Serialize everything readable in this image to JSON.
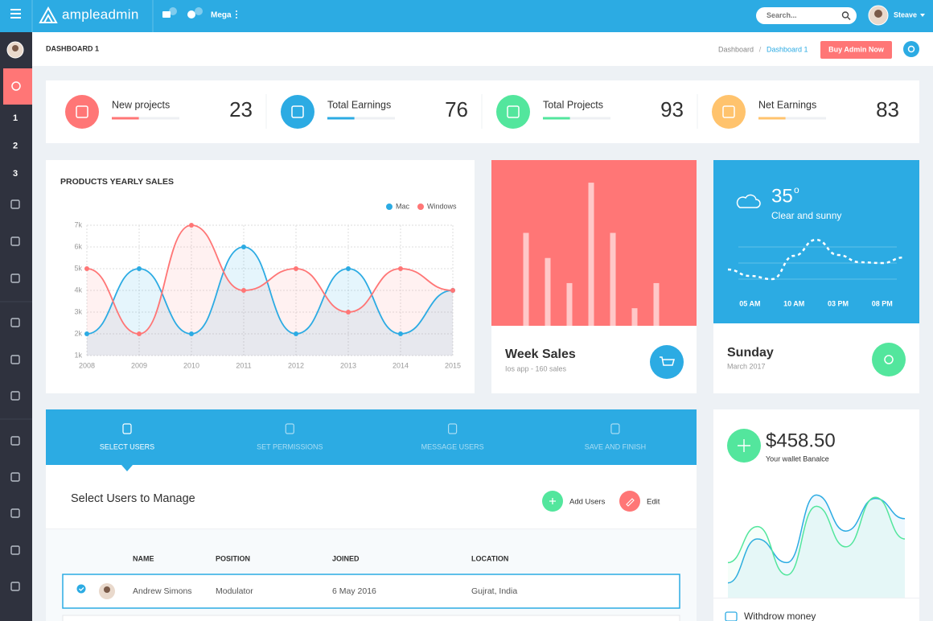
{
  "topbar": {
    "brand": "ampleadmin",
    "menu": "Mega",
    "search_placeholder": "Search...",
    "user": "Steave"
  },
  "sidebar": {
    "items": [
      "1",
      "2",
      "3"
    ]
  },
  "breadcrumb": {
    "page_title": "DASHBOARD 1",
    "trail": [
      "Dashboard",
      "Dashboard 1"
    ],
    "separator": "/",
    "button": "Buy Admin Now"
  },
  "stats": [
    {
      "label": "New projects",
      "value": 23,
      "progress": 40,
      "color": "#ff7676"
    },
    {
      "label": "Total Earnings",
      "value": 76,
      "progress": 40,
      "color": "#2cabe3"
    },
    {
      "label": "Total Projects",
      "value": 93,
      "progress": 40,
      "color": "#53e69d"
    },
    {
      "label": "Net Earnings",
      "value": 83,
      "progress": 40,
      "color": "#ffc36d"
    }
  ],
  "chart_data": [
    {
      "type": "line",
      "title": "PRODUCTS YEARLY SALES",
      "categories": [
        "2008",
        "2009",
        "2010",
        "2011",
        "2012",
        "2013",
        "2014",
        "2015"
      ],
      "series": [
        {
          "name": "Mac",
          "color": "#2cabe3",
          "values": [
            2000,
            5000,
            2000,
            6000,
            2000,
            5000,
            2000,
            4000
          ]
        },
        {
          "name": "Windows",
          "color": "#ff7676",
          "values": [
            5000,
            2000,
            7000,
            4000,
            5000,
            3000,
            5000,
            4000
          ]
        }
      ],
      "ylim": [
        1000,
        7000
      ],
      "yticks": [
        {
          "value": 1000,
          "label": "1k"
        },
        {
          "value": 2000,
          "label": "2k"
        },
        {
          "value": 3000,
          "label": "3k"
        },
        {
          "value": 4000,
          "label": "4k"
        },
        {
          "value": 5000,
          "label": "5k"
        },
        {
          "value": 6000,
          "label": "6k"
        },
        {
          "value": 7000,
          "label": "7k"
        }
      ],
      "grid": true,
      "legend": "top-right"
    },
    {
      "type": "bar",
      "title": "Week Sales",
      "subtitle": "Ios app - 160 sales",
      "values": [
        5,
        4,
        3,
        7,
        5,
        2,
        3
      ],
      "color": "rgba(255,255,255,0.6)",
      "ylim": [
        1.3,
        7.9
      ]
    },
    {
      "type": "line",
      "temperature": 35,
      "unit": "o",
      "condition": "Clear and sunny",
      "day": "Sunday",
      "date": "March 2017",
      "categories": [
        null,
        "05 AM",
        null,
        "10 AM",
        null,
        "03 PM",
        null,
        "08 PM",
        null
      ],
      "values": [
        20,
        12,
        8,
        37,
        57,
        38,
        29,
        28,
        35
      ],
      "color": "#ffffff",
      "ylim": [
        0,
        60
      ]
    },
    {
      "type": "line",
      "amount": "$458.50",
      "subtitle": "Your wallet Banalce",
      "footer": "Withdrow money",
      "series": [
        {
          "color": "#2cabe3",
          "values": [
            11,
            50,
            29,
            89,
            57,
            86,
            68
          ]
        },
        {
          "color": "#53e69d",
          "values": [
            29,
            61,
            18,
            79,
            43,
            87,
            50
          ]
        }
      ],
      "ylim": [
        0,
        100
      ]
    }
  ],
  "wizard": {
    "tabs": [
      "SELECT USERS",
      "SET PERMISSIONS",
      "MESSAGE USERS",
      "SAVE AND FINISH"
    ],
    "heading": "Select Users to Manage",
    "actions": [
      "Add Users",
      "Edit"
    ],
    "table": {
      "columns": [
        "NAME",
        "POSITION",
        "JOINED",
        "LOCATION"
      ],
      "rows": [
        [
          "Andrew Simons",
          "Modulator",
          "6 May 2016",
          "Gujrat, India"
        ]
      ]
    }
  }
}
